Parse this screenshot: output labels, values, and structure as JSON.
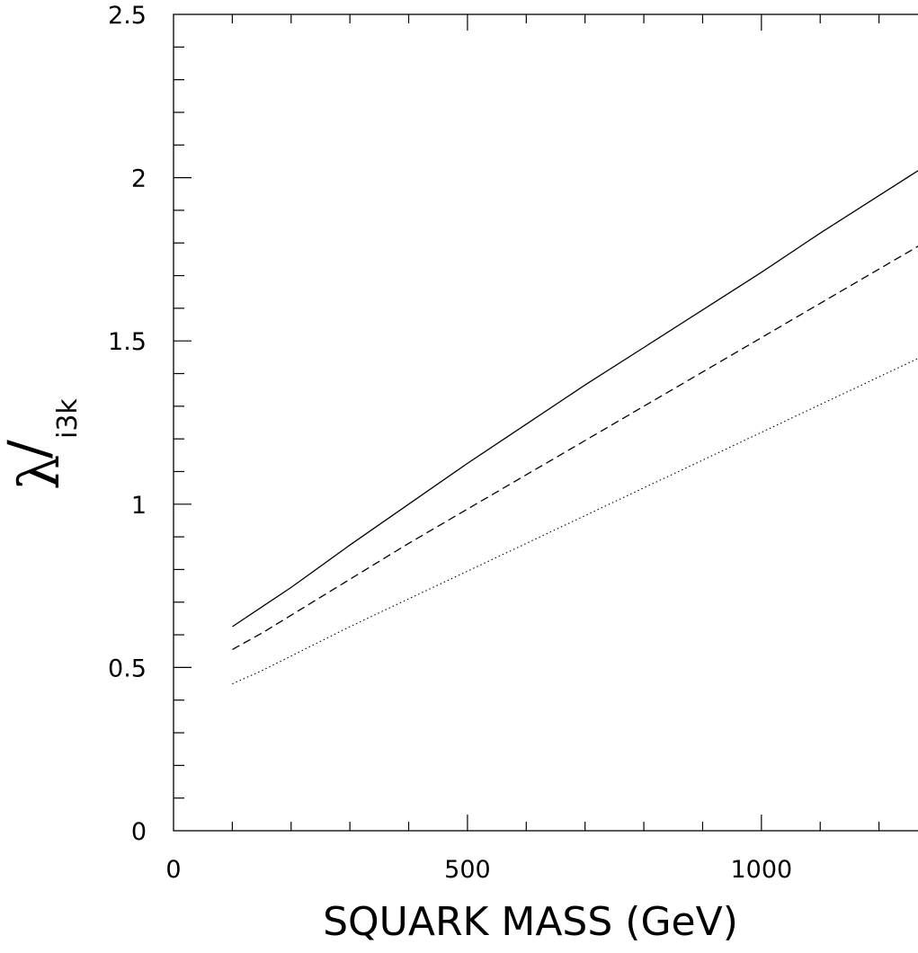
{
  "chart_data": {
    "type": "line",
    "title": "",
    "xlabel": "SQUARK MASS (GeV)",
    "ylabel": {
      "symbol": "λ",
      "prime": "/",
      "subscript": "i3k"
    },
    "xlim": [
      0,
      1300
    ],
    "ylim": [
      0,
      2.5
    ],
    "x_ticks_major": [
      0,
      500,
      1000
    ],
    "x_tick_labels": [
      "0",
      "500",
      "1000"
    ],
    "x_ticks_minor_step": 100,
    "y_ticks_major": [
      0,
      0.5,
      1,
      1.5,
      2,
      2.5
    ],
    "y_tick_labels": [
      "0",
      "0.5",
      "1",
      "1.5",
      "2",
      "2.5"
    ],
    "y_ticks_minor_step": 0.1,
    "grid": false,
    "legend": "none",
    "series": [
      {
        "style": "solid",
        "x": [
          100,
          150,
          200,
          300,
          400,
          500,
          600,
          700,
          800,
          900,
          1000,
          1100,
          1200,
          1300
        ],
        "values": [
          0.625,
          0.685,
          0.745,
          0.875,
          1.0,
          1.125,
          1.245,
          1.365,
          1.48,
          1.595,
          1.71,
          1.83,
          1.945,
          2.06
        ]
      },
      {
        "style": "dashed",
        "x": [
          100,
          150,
          200,
          300,
          400,
          500,
          600,
          700,
          800,
          900,
          1000,
          1100,
          1200,
          1300
        ],
        "values": [
          0.555,
          0.605,
          0.66,
          0.77,
          0.88,
          0.985,
          1.09,
          1.195,
          1.3,
          1.405,
          1.51,
          1.615,
          1.72,
          1.825
        ]
      },
      {
        "style": "dotted",
        "x": [
          100,
          150,
          200,
          300,
          400,
          500,
          600,
          700,
          800,
          900,
          1000,
          1100,
          1200,
          1300
        ],
        "values": [
          0.45,
          0.49,
          0.535,
          0.625,
          0.71,
          0.795,
          0.88,
          0.965,
          1.05,
          1.135,
          1.22,
          1.305,
          1.39,
          1.475
        ]
      }
    ]
  }
}
